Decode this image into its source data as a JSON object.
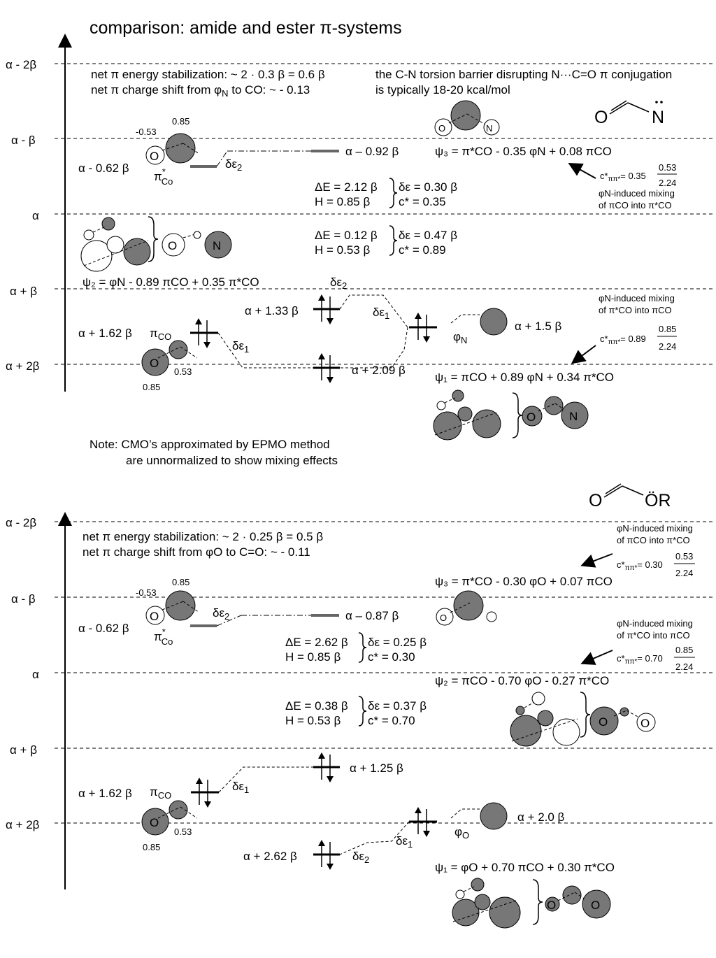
{
  "title": "comparison: amide and ester π-systems",
  "axis_labels": [
    "α - 2β",
    "α - β",
    "α",
    "α + β",
    "α + 2β"
  ],
  "amide": {
    "stab_line1": "net π energy stabilization: ~ 2 · 0.3 β = 0.6 β",
    "stab_line2_pre": "net π charge shift from ",
    "stab_line2_sym": "φ",
    "stab_line2_sub": "N",
    "stab_line2_post": " to CO: ~ - 0.13",
    "torsion_line1": "the C-N torsion barrier disrupting N···C=O π conjugation",
    "torsion_line2": "is typically 18-20 kcal/mol",
    "struct_O": "O",
    "struct_N": "N",
    "pistar_coef_top": "0.85",
    "pistar_coef_left": "-0.53",
    "pistar_energy": "α - 0.62 β",
    "pistar_label": "π",
    "pistar_sup": "*",
    "pistar_sub": "Co",
    "de2_top": "δε",
    "de2_top_sub": "2",
    "psi3_energy": "α – 0.92 β",
    "psi3_eq": "ψ₃ = π*CO - 0.35 φN + 0.08 πCO",
    "psi3_coef_pre": "c*",
    "psi3_coef_sub": "ππ*",
    "psi3_coef_val": "= 0.35",
    "psi3_frac_num": "0.53",
    "psi3_frac_den": "2.24",
    "mix_top_line1": "φN-induced mixing",
    "mix_top_line2": "of πCO into π*CO",
    "dE1": "ΔE = 2.12 β",
    "H1": "H = 0.85 β",
    "ds1": "δε = 0.30 β",
    "c1": "c* = 0.35",
    "dE2": "ΔE = 0.12 β",
    "H2": "H = 0.53 β",
    "ds2": "δε = 0.47 β",
    "c2": "c* = 0.89",
    "psi2_eq": "ψ₂ = φN - 0.89 πCO + 0.35 π*CO",
    "de2_mid": "δε",
    "de2_mid_sub": "2",
    "e133": "α + 1.33 β",
    "de1_mid": "δε",
    "de1_mid_sub": "1",
    "e162": "α + 1.62 β",
    "pi_label": "π",
    "pi_sub": "CO",
    "de1_left": "δε",
    "de1_left_sub": "1",
    "phiN_label": "φ",
    "phiN_sub": "N",
    "e15": "α + 1.5 β",
    "mix_bot_line1": "φN-induced mixing",
    "mix_bot_line2": "of π*CO into πCO",
    "psi1_coef_pre": "c*",
    "psi1_coef_sub": "ππ*",
    "psi1_coef_val": "= 0.89",
    "psi1_frac_num": "0.85",
    "psi1_frac_den": "2.24",
    "pico_coef_right": "0.53",
    "pico_coef_bot": "0.85",
    "e209": "α + 2.09 β",
    "psi1_eq": "ψ₁ = πCO + 0.89 φN + 0.34 π*CO"
  },
  "note_line1": "Note: CMO’s approximated by EPMO method",
  "note_line2": "are unnormalized to show mixing effects",
  "ester": {
    "struct_O": "O",
    "struct_OR": "ÖR",
    "stab_line1": "net π energy stabilization: ~ 2 · 0.25 β = 0.5 β",
    "stab_line2": "net π charge shift from φO to C=O: ~ - 0.11",
    "mix_top_line1": "φN-induced mixing",
    "mix_top_line2": "of πCO into π*CO",
    "psi3_coef_pre": "c*",
    "psi3_coef_sub": "ππ*",
    "psi3_coef_val": "= 0.30",
    "psi3_frac_num": "0.53",
    "psi3_frac_den": "2.24",
    "pistar_coef_top": "0.85",
    "pistar_coef_left": "-0.53",
    "psi3_eq": "ψ₃ = π*CO - 0.30 φO + 0.07 πCO",
    "pistar_energy": "α - 0.62 β",
    "de2_top": "δε",
    "de2_top_sub": "2",
    "psi3_energy": "α – 0.87 β",
    "pistar_label": "π",
    "pistar_sup": "*",
    "pistar_sub": "Co",
    "mix_mid_line1": "φN-induced mixing",
    "mix_mid_line2": "of π*CO into πCO",
    "dE1": "ΔE = 2.62 β",
    "H1": "H = 0.85 β",
    "ds1": "δε = 0.25 β",
    "c1": "c* = 0.30",
    "psi2_coef_pre": "c*",
    "psi2_coef_sub": "ππ*",
    "psi2_coef_val": "= 0.70",
    "psi2_frac_num": "0.85",
    "psi2_frac_den": "2.24",
    "psi2_eq": "ψ₂ = πCO - 0.70 φO - 0.27 π*CO",
    "dE2": "ΔE = 0.38 β",
    "H2": "H = 0.53 β",
    "ds2": "δε = 0.37 β",
    "c2": "c* = 0.70",
    "e125": "α + 1.25 β",
    "e162": "α + 1.62 β",
    "pi_label": "π",
    "pi_sub": "CO",
    "de1_left": "δε",
    "de1_left_sub": "1",
    "e20": "α + 2.0 β",
    "phiO_label": "φ",
    "phiO_sub": "O",
    "pico_coef_right": "0.53",
    "pico_coef_bot": "0.85",
    "de1_right": "δε",
    "de1_right_sub": "1",
    "e262": "α + 2.62 β",
    "de2_bot": "δε",
    "de2_bot_sub": "2",
    "psi1_eq": "ψ₁ = φO + 0.70 πCO + 0.30 π*CO"
  }
}
